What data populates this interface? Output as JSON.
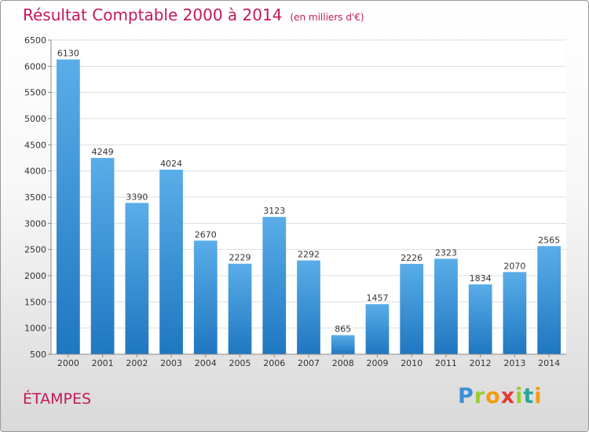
{
  "header": {
    "title": "Résultat Comptable 2000 à 2014",
    "subtitle": "(en milliers d'€)"
  },
  "footer": {
    "city": "ÉTAMPES",
    "logo": "Proxiti"
  },
  "colors": {
    "title": "#c2185b",
    "bar_top": "#5aade8",
    "bar_bottom": "#1f77c0",
    "grid": "#dddddd"
  },
  "chart_data": {
    "type": "bar",
    "title": "Résultat Comptable 2000 à 2014",
    "subtitle": "(en milliers d'€)",
    "xlabel": "",
    "ylabel": "",
    "categories": [
      "2000",
      "2001",
      "2002",
      "2003",
      "2004",
      "2005",
      "2006",
      "2007",
      "2008",
      "2009",
      "2010",
      "2011",
      "2012",
      "2013",
      "2014"
    ],
    "values": [
      6130,
      4249,
      3390,
      4024,
      2670,
      2229,
      3123,
      2292,
      865,
      1457,
      2226,
      2323,
      1834,
      2070,
      2565
    ],
    "ylim": [
      500,
      6500
    ],
    "yticks": [
      500,
      1000,
      1500,
      2000,
      2500,
      3000,
      3500,
      4000,
      4500,
      5000,
      5500,
      6000,
      6500
    ],
    "grid": true,
    "legend": "none"
  }
}
